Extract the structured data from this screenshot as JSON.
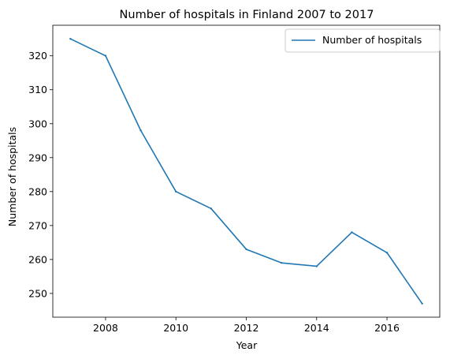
{
  "chart_data": {
    "type": "line",
    "title": "Number of hospitals in Finland 2007 to 2017",
    "xlabel": "Year",
    "ylabel": "Number of hospitals",
    "x": [
      2007,
      2008,
      2009,
      2010,
      2011,
      2012,
      2013,
      2014,
      2015,
      2016,
      2017
    ],
    "series": [
      {
        "name": "Number of hospitals",
        "color": "#1f77b4",
        "values": [
          325,
          320,
          298,
          280,
          275,
          263,
          259,
          258,
          268,
          262,
          247
        ]
      }
    ],
    "xlim": [
      2006.5,
      2017.5
    ],
    "ylim": [
      243,
      329
    ],
    "xticks": [
      2008,
      2010,
      2012,
      2014,
      2016
    ],
    "yticks": [
      250,
      260,
      270,
      280,
      290,
      300,
      310,
      320
    ],
    "grid": false,
    "legend_position": "top-right"
  }
}
